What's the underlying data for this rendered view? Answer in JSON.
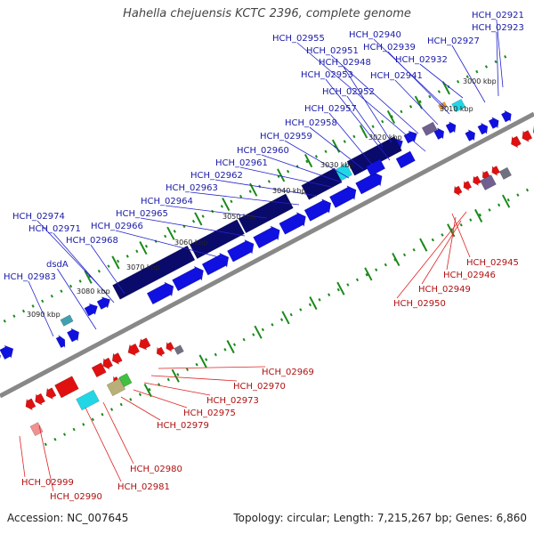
{
  "title": "Hahella chejuensis KCTC 2396, complete genome",
  "accession_label": "Accession: NC_007645",
  "summary_label": "Topology: circular; Length: 7,215,267 bp; Genes: 6,860",
  "colors": {
    "forward": "#1010e0",
    "reverse": "#e01010",
    "backbone": "#888888",
    "tick": "#1a8a1a",
    "navy": "#0a0a6a",
    "cyan": "#22d6e6",
    "orange": "#f0a020",
    "teal": "#40a0b0",
    "pink": "#f09090",
    "khaki": "#b8b078",
    "green_gene": "#40c040",
    "grey": "#707080",
    "lavender": "#706090"
  },
  "kbp_labels": [
    "3000 kbp",
    "3010 kbp",
    "3020 kbp",
    "3030 kbp",
    "3040 kbp",
    "3050 kbp",
    "3060 kbp",
    "3070 kbp",
    "3080 kbp",
    "3090 kbp"
  ],
  "forward_labels": [
    "HCH_02921",
    "HCH_02923",
    "HCH_02927",
    "HCH_02932",
    "HCH_02940",
    "HCH_02939",
    "HCH_02941",
    "HCH_02955",
    "HCH_02951",
    "HCH_02948",
    "HCH_02953",
    "HCH_02952",
    "HCH_02957",
    "HCH_02958",
    "HCH_02959",
    "HCH_02960",
    "HCH_02961",
    "HCH_02962",
    "HCH_02963",
    "HCH_02964",
    "HCH_02965",
    "HCH_02966",
    "HCH_02974",
    "HCH_02971",
    "HCH_02968",
    "dsdA",
    "HCH_02983"
  ],
  "reverse_labels": [
    "HCH_02945",
    "HCH_02946",
    "HCH_02949",
    "HCH_02950",
    "HCH_02969",
    "HCH_02970",
    "HCH_02973",
    "HCH_02975",
    "HCH_02979",
    "HCH_02980",
    "HCH_02981",
    "HCH_02999",
    "HCH_02990"
  ]
}
